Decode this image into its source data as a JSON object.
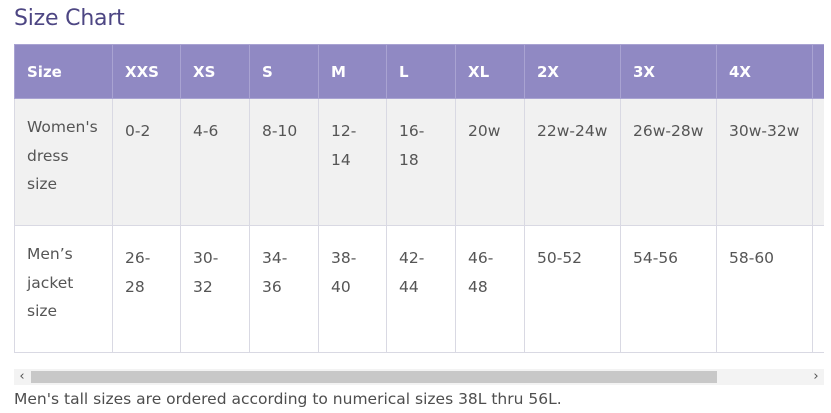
{
  "title": "Size Chart",
  "table": {
    "headers": [
      "Size",
      "XXS",
      "XS",
      "S",
      "M",
      "L",
      "XL",
      "2X",
      "3X",
      "4X",
      ""
    ],
    "rows": [
      {
        "label": "Women's dress size",
        "cells": [
          "0-2",
          "4-6",
          "8-10",
          "12-14",
          "16-18",
          "20w",
          "22w-24w",
          "26w-28w",
          "30w-32w",
          ""
        ]
      },
      {
        "label": "Men’s jacket size",
        "cells": [
          "26-28",
          "30-32",
          "34-36",
          "38-40",
          "42-44",
          "46-48",
          "50-52",
          "54-56",
          "58-60",
          ""
        ]
      }
    ]
  },
  "scrollbar": {
    "left_arrow": "‹",
    "right_arrow": "›",
    "position_fraction": 0.0
  },
  "footnote": "Men's tall sizes are ordered according to numerical sizes 38L thru 56L."
}
